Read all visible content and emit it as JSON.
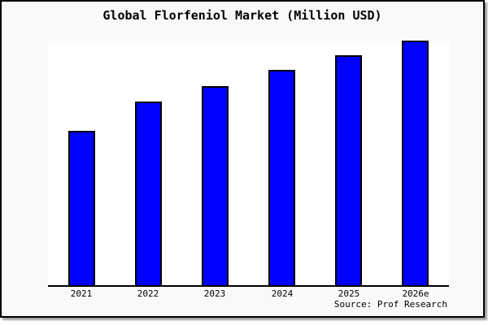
{
  "chart_data": {
    "type": "bar",
    "title": "Global Florfeniol Market (Million USD)",
    "categories": [
      "2021",
      "2022",
      "2023",
      "2024",
      "2025",
      "2026e"
    ],
    "values": [
      63,
      75,
      81.5,
      88,
      94,
      100
    ],
    "note": "No y-axis, gridlines or data labels are rendered; values are relative estimates from bar heights, scaled so the tallest bar (2026e) = 100.",
    "ylim": [
      0,
      100
    ],
    "xlabel": "",
    "ylabel": "",
    "grid": false,
    "legend": false,
    "source": "Source: Prof Research",
    "colors": {
      "bar_fill": "#0000ff",
      "bar_edge": "#000000",
      "canvas_background": "#f9f9f9",
      "plot_background": "#ffffff",
      "axis_line": "#000000",
      "text": "#000000",
      "frame_border": "#000000",
      "frame_shadow": "#9e9e9e"
    }
  }
}
